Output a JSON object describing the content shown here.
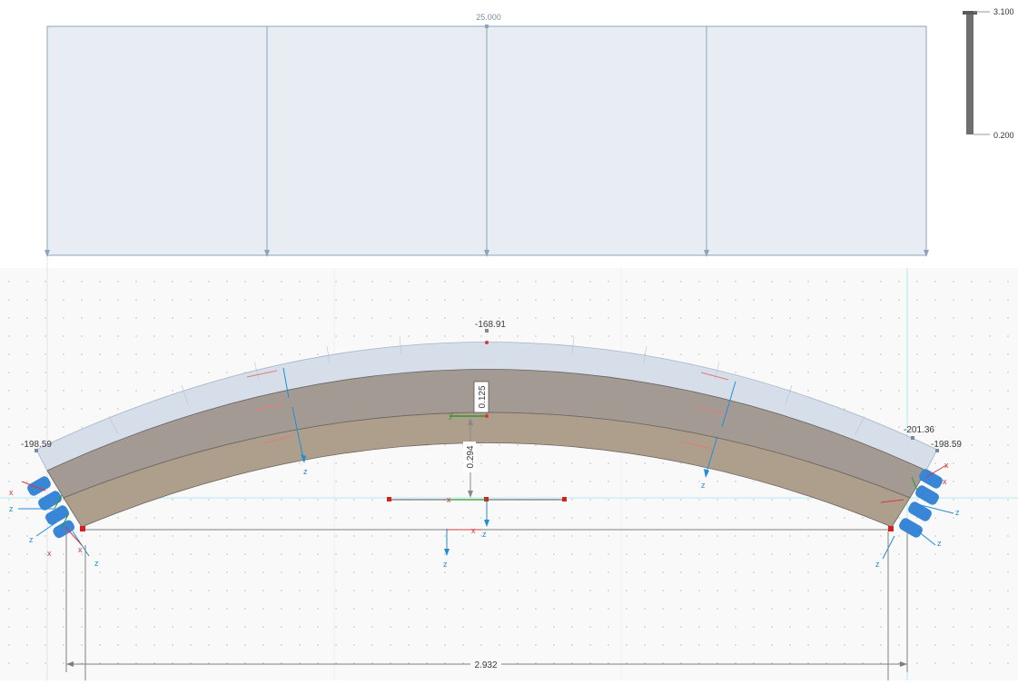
{
  "load": {
    "value_label": "25.000"
  },
  "scale_bar": {
    "max_label": "3.100",
    "min_label": "0.200"
  },
  "arch": {
    "crown_value": "-168.91",
    "left_value": "-198.59",
    "right_inner_value": "-201.36",
    "right_outer_value": "-198.59"
  },
  "dimensions": {
    "thickness": "0.125",
    "rise": "0.294",
    "span": "2.932"
  },
  "axes": {
    "x": "x",
    "y": "y",
    "z": "z"
  },
  "colors": {
    "load_fill": "#e8edf4",
    "load_stroke": "#8ea3ba",
    "arch_fill": "#a39a92",
    "arch_inner": "#ab9c8a",
    "arch_outer_band": "#d4dce8",
    "support": "#3a86d6",
    "axis_x": "#d23a3a",
    "axis_y": "#2c9a2c",
    "axis_z": "#1f8ed6",
    "background": "#f8f8f8"
  }
}
